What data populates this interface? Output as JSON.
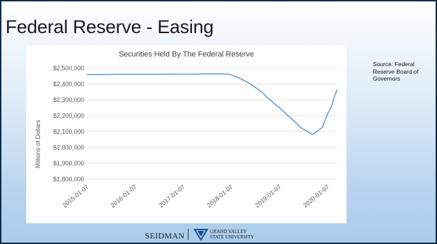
{
  "slide": {
    "title": "Federal Reserve - Easing",
    "source": "Source: Federal Reserve Board of Governors"
  },
  "footer": {
    "seidman": "SEIDMAN",
    "university_line1": "GRAND VALLEY",
    "university_line2": "STATE UNIVERSITY"
  },
  "colors": {
    "line": "#5b9bd5",
    "grid": "#d9d9d9",
    "text": "#595959"
  },
  "chart_data": {
    "type": "line",
    "title": "Securities Held By The Federal Reserve",
    "ylabel": "Millions of Dollars",
    "xlabel": "",
    "ylim": [
      1800000,
      2500000
    ],
    "yticks": [
      {
        "value": 2500000,
        "label": "$2,500,000"
      },
      {
        "value": 2400000,
        "label": "$2,400,000"
      },
      {
        "value": 2300000,
        "label": "$2,300,000"
      },
      {
        "value": 2200000,
        "label": "$2,200,000"
      },
      {
        "value": 2100000,
        "label": "$2,100,000"
      },
      {
        "value": 2000000,
        "label": "$2,000,000"
      },
      {
        "value": 1900000,
        "label": "$1,900,000"
      },
      {
        "value": 1800000,
        "label": "$1,800,000"
      }
    ],
    "xrange": [
      "2015-01-07",
      "2020-03-18"
    ],
    "xticks": [
      "2015-01-07",
      "2016-01-07",
      "2017-01-07",
      "2018-01-07",
      "2019-01-07",
      "2020-01-07"
    ],
    "grid": "horizontal",
    "legend": "none",
    "series": [
      {
        "points": [
          [
            "2015-01-07",
            2460000
          ],
          [
            "2015-04-01",
            2460000
          ],
          [
            "2015-07-01",
            2461000
          ],
          [
            "2015-10-01",
            2462000
          ],
          [
            "2016-01-07",
            2462000
          ],
          [
            "2016-04-01",
            2462000
          ],
          [
            "2016-07-01",
            2462000
          ],
          [
            "2016-10-01",
            2463000
          ],
          [
            "2017-01-07",
            2463000
          ],
          [
            "2017-04-01",
            2463000
          ],
          [
            "2017-07-01",
            2464000
          ],
          [
            "2017-10-01",
            2464000
          ],
          [
            "2017-12-15",
            2463000
          ],
          [
            "2018-01-07",
            2458000
          ],
          [
            "2018-02-01",
            2450000
          ],
          [
            "2018-03-01",
            2440000
          ],
          [
            "2018-04-01",
            2428000
          ],
          [
            "2018-05-01",
            2415000
          ],
          [
            "2018-06-01",
            2400000
          ],
          [
            "2018-07-01",
            2383000
          ],
          [
            "2018-08-01",
            2365000
          ],
          [
            "2018-09-01",
            2345000
          ],
          [
            "2018-10-01",
            2320000
          ],
          [
            "2018-11-01",
            2298000
          ],
          [
            "2018-12-01",
            2275000
          ],
          [
            "2019-01-07",
            2252000
          ],
          [
            "2019-02-01",
            2232000
          ],
          [
            "2019-03-01",
            2210000
          ],
          [
            "2019-04-01",
            2188000
          ],
          [
            "2019-05-01",
            2163000
          ],
          [
            "2019-06-01",
            2140000
          ],
          [
            "2019-07-01",
            2118000
          ],
          [
            "2019-08-01",
            2105000
          ],
          [
            "2019-08-25",
            2092000
          ],
          [
            "2019-09-15",
            2082000
          ],
          [
            "2019-10-01",
            2090000
          ],
          [
            "2019-10-20",
            2102000
          ],
          [
            "2019-11-15",
            2118000
          ],
          [
            "2019-12-01",
            2130000
          ],
          [
            "2019-12-20",
            2175000
          ],
          [
            "2020-01-07",
            2212000
          ],
          [
            "2020-01-25",
            2240000
          ],
          [
            "2020-02-10",
            2270000
          ],
          [
            "2020-02-25",
            2315000
          ],
          [
            "2020-03-10",
            2345000
          ],
          [
            "2020-03-18",
            2365000
          ]
        ]
      }
    ]
  }
}
